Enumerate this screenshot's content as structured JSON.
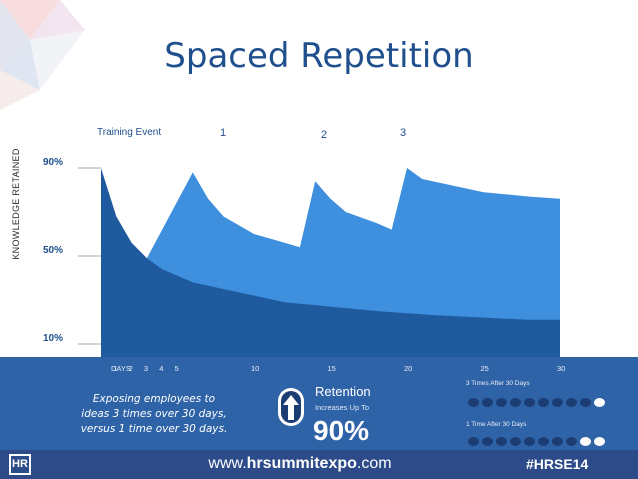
{
  "title": "Spaced Repetition",
  "colors": {
    "title": "#1f4f8c",
    "dark_area": "#1f5a9f",
    "light_area": "#3e8fdd",
    "band": "#2f63a8",
    "footer": "#2c4b88",
    "dot_dark": "#1b3d73",
    "dot_light": "#ffffff"
  },
  "chart_data": {
    "type": "area",
    "ylabel": "KNOWLEDGE RETAINED",
    "y_ticks": [
      "90%",
      "50%",
      "10%"
    ],
    "xlabel": "DAYS",
    "x_ticks": [
      "1",
      "2",
      "3",
      "4",
      "5",
      "10",
      "15",
      "20",
      "25",
      "30"
    ],
    "events": [
      {
        "label": "Training Event",
        "day": 0
      },
      {
        "label": "1",
        "day": 6
      },
      {
        "label": "2",
        "day": 14
      },
      {
        "label": "3",
        "day": 20
      }
    ],
    "series": [
      {
        "points": [
          [
            0,
            90
          ],
          [
            1,
            68
          ],
          [
            2,
            56
          ],
          [
            3,
            49
          ],
          [
            4,
            44
          ],
          [
            5,
            41
          ],
          [
            6,
            38
          ],
          [
            8,
            35
          ],
          [
            10,
            32
          ],
          [
            12,
            29
          ],
          [
            15,
            27
          ],
          [
            18,
            25
          ],
          [
            20,
            24
          ],
          [
            22,
            23
          ],
          [
            25,
            22
          ],
          [
            28,
            21
          ],
          [
            30,
            21
          ]
        ]
      },
      {
        "points": [
          [
            3,
            49
          ],
          [
            6,
            88
          ],
          [
            7,
            76
          ],
          [
            8,
            68
          ],
          [
            10,
            60
          ],
          [
            12,
            56
          ],
          [
            13,
            54
          ],
          [
            14,
            84
          ],
          [
            15,
            76
          ],
          [
            16,
            70
          ],
          [
            18,
            65
          ],
          [
            19,
            62
          ],
          [
            20,
            90
          ],
          [
            21,
            85
          ],
          [
            23,
            82
          ],
          [
            25,
            79
          ],
          [
            28,
            77
          ],
          [
            30,
            76
          ]
        ]
      }
    ],
    "ylim": [
      0,
      100
    ],
    "xlim": [
      0,
      30
    ]
  },
  "summary": {
    "text_lines": [
      "Exposing employees to",
      "ideas 3 times over 30 days,",
      "versus 1 time over 30 days."
    ],
    "retention_label": "Retention",
    "retention_sub": "Increases Up To",
    "retention_value": "90%",
    "icon": "up-arrow-icon"
  },
  "comparison": [
    {
      "label": "3 Times After 30 Days",
      "total": 10,
      "light": 1
    },
    {
      "label": "1 Time After 30 Days",
      "total": 10,
      "light": 2
    }
  ],
  "footer": {
    "logo": "HR",
    "url_prefix": "www.",
    "url_brand": "hrsummitexpo",
    "url_suffix": ".com",
    "hashtag": "#HRSE14"
  }
}
